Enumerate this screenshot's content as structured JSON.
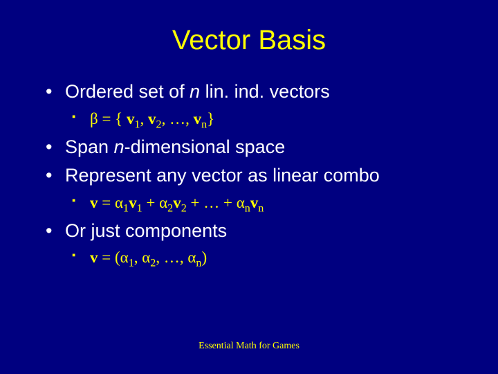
{
  "colors": {
    "background": "#000080",
    "title": "#ffff00",
    "body_text": "#ffffff",
    "sub_text": "#ffff00",
    "footer": "#ffff00"
  },
  "typography": {
    "title_fontsize": 40,
    "body_fontsize": 27,
    "sub_fontsize": 23,
    "footer_fontsize": 14,
    "title_font": "Arial",
    "body_font": "Arial",
    "sub_font": "Times New Roman"
  },
  "title": "Vector Basis",
  "bullets": [
    {
      "text_parts": [
        "Ordered set of ",
        {
          "italic": "n"
        },
        " lin. ind. vectors"
      ],
      "sub": [
        {
          "formula_parts": [
            "β = { ",
            {
              "bold": "v"
            },
            {
              "sub": "1"
            },
            ", ",
            {
              "bold": "v"
            },
            {
              "sub": "2"
            },
            ", …, ",
            {
              "bold": "v"
            },
            {
              "sub": "n"
            },
            "}"
          ]
        }
      ]
    },
    {
      "text_parts": [
        "Span ",
        {
          "italic": "n"
        },
        "-dimensional space"
      ]
    },
    {
      "text_parts": [
        "Represent any vector as linear combo"
      ],
      "sub": [
        {
          "formula_parts": [
            {
              "bold": "v"
            },
            " = α",
            {
              "sub": "1"
            },
            {
              "bold": "v"
            },
            {
              "sub": "1"
            },
            " + α",
            {
              "sub": "2"
            },
            {
              "bold": "v"
            },
            {
              "sub": "2"
            },
            " + … + α",
            {
              "sub": "n"
            },
            {
              "bold": "v"
            },
            {
              "sub": "n"
            }
          ]
        }
      ]
    },
    {
      "text_parts": [
        "Or just components"
      ],
      "sub": [
        {
          "formula_parts": [
            {
              "bold": "v"
            },
            " = (α",
            {
              "sub": "1"
            },
            ", α",
            {
              "sub": "2"
            },
            ", …, α",
            {
              "sub": "n"
            },
            ")"
          ]
        }
      ]
    }
  ],
  "footer": "Essential Math for Games"
}
